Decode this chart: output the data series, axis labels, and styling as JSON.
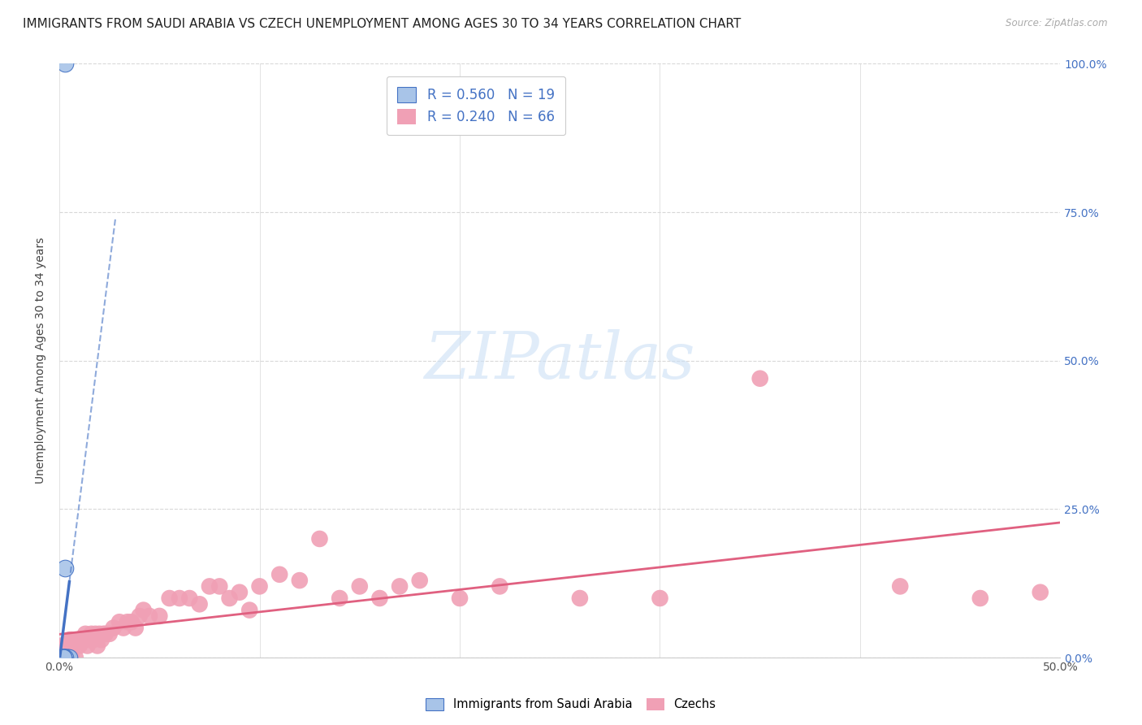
{
  "title": "IMMIGRANTS FROM SAUDI ARABIA VS CZECH UNEMPLOYMENT AMONG AGES 30 TO 34 YEARS CORRELATION CHART",
  "source": "Source: ZipAtlas.com",
  "ylabel": "Unemployment Among Ages 30 to 34 years",
  "xlim": [
    0.0,
    0.5
  ],
  "ylim": [
    0.0,
    1.0
  ],
  "yticks": [
    0.0,
    0.25,
    0.5,
    0.75,
    1.0
  ],
  "ytick_labels_right": [
    "0.0%",
    "25.0%",
    "50.0%",
    "75.0%",
    "100.0%"
  ],
  "xticks": [
    0.0,
    0.1,
    0.2,
    0.3,
    0.4,
    0.5
  ],
  "xtick_labels": [
    "0.0%",
    "",
    "",
    "",
    "",
    "50.0%"
  ],
  "saudi_scatter_x": [
    0.001,
    0.002,
    0.002,
    0.003,
    0.003,
    0.003,
    0.004,
    0.004,
    0.005,
    0.001,
    0.002,
    0.003,
    0.002,
    0.001,
    0.001,
    0.002,
    0.002,
    0.003,
    0.003
  ],
  "saudi_scatter_y": [
    0.0,
    0.0,
    0.0,
    0.0,
    0.0,
    0.0,
    0.0,
    0.0,
    0.0,
    0.0,
    0.0,
    0.0,
    0.0,
    0.0,
    0.0,
    0.0,
    0.0,
    0.15,
    1.0
  ],
  "czech_scatter_x": [
    0.001,
    0.001,
    0.002,
    0.002,
    0.003,
    0.003,
    0.004,
    0.004,
    0.005,
    0.005,
    0.006,
    0.006,
    0.007,
    0.008,
    0.009,
    0.01,
    0.011,
    0.012,
    0.013,
    0.014,
    0.015,
    0.016,
    0.017,
    0.018,
    0.019,
    0.02,
    0.021,
    0.022,
    0.023,
    0.025,
    0.027,
    0.03,
    0.032,
    0.034,
    0.036,
    0.038,
    0.04,
    0.042,
    0.045,
    0.05,
    0.055,
    0.06,
    0.065,
    0.07,
    0.075,
    0.08,
    0.085,
    0.09,
    0.095,
    0.1,
    0.11,
    0.12,
    0.13,
    0.14,
    0.15,
    0.16,
    0.17,
    0.18,
    0.2,
    0.22,
    0.26,
    0.3,
    0.35,
    0.42,
    0.46,
    0.49
  ],
  "czech_scatter_y": [
    0.0,
    0.02,
    0.0,
    0.02,
    0.0,
    0.02,
    0.0,
    0.02,
    0.03,
    0.0,
    0.03,
    0.0,
    0.02,
    0.0,
    0.03,
    0.02,
    0.03,
    0.03,
    0.04,
    0.02,
    0.03,
    0.04,
    0.03,
    0.04,
    0.02,
    0.04,
    0.03,
    0.04,
    0.04,
    0.04,
    0.05,
    0.06,
    0.05,
    0.06,
    0.06,
    0.05,
    0.07,
    0.08,
    0.07,
    0.07,
    0.1,
    0.1,
    0.1,
    0.09,
    0.12,
    0.12,
    0.1,
    0.11,
    0.08,
    0.12,
    0.14,
    0.13,
    0.2,
    0.1,
    0.12,
    0.1,
    0.12,
    0.13,
    0.1,
    0.12,
    0.1,
    0.1,
    0.47,
    0.12,
    0.1,
    0.11
  ],
  "saudi_color": "#a8c4e8",
  "czech_color": "#f0a0b5",
  "saudi_line_color": "#4472c4",
  "czech_line_color": "#e06080",
  "background_color": "#ffffff",
  "grid_color": "#d8d8d8",
  "title_fontsize": 11,
  "axis_label_fontsize": 10,
  "tick_fontsize": 10,
  "right_tick_color": "#4472c4",
  "watermark_color": "#cce0f5"
}
